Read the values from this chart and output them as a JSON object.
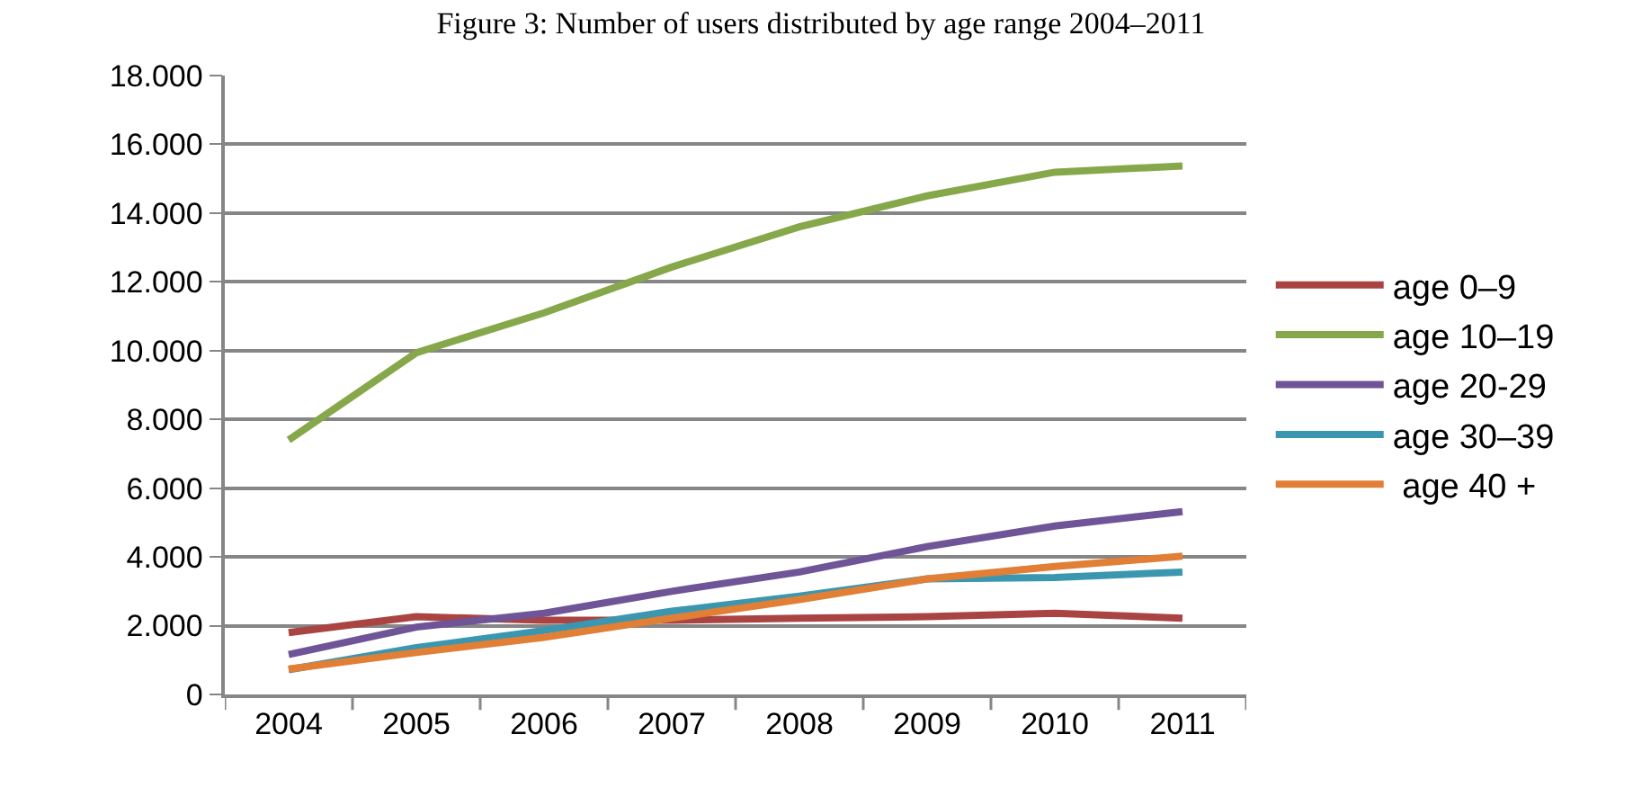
{
  "chart_data": {
    "type": "line",
    "title": "Figure 3: Number of users distributed by age range 2004–2011",
    "categories": [
      "2004",
      "2005",
      "2006",
      "2007",
      "2008",
      "2009",
      "2010",
      "2011"
    ],
    "series": [
      {
        "name": "age 0–9",
        "color": "#a94442",
        "values": [
          1800,
          2260,
          2160,
          2160,
          2220,
          2260,
          2360,
          2220
        ]
      },
      {
        "name": "age 10–19",
        "color": "#86a84a",
        "values": [
          7400,
          9940,
          11100,
          12430,
          13600,
          14500,
          15190,
          15370
        ]
      },
      {
        "name": "age 20-29",
        "color": "#6f5497",
        "values": [
          1160,
          1960,
          2360,
          3000,
          3560,
          4300,
          4900,
          5320
        ]
      },
      {
        "name": "age 30–39",
        "color": "#3b97b0",
        "values": [
          720,
          1360,
          1860,
          2420,
          2860,
          3360,
          3400,
          3560
        ]
      },
      {
        "name": " age 40 +",
        "color": "#e07f35",
        "values": [
          740,
          1220,
          1660,
          2220,
          2760,
          3360,
          3720,
          4020
        ]
      }
    ],
    "ylim": [
      0,
      18000
    ],
    "yticks": [
      0,
      {
        "value": 2000,
        "label": "2.000"
      },
      {
        "value": 4000,
        "label": "4.000"
      },
      {
        "value": 6000,
        "label": "6.000"
      },
      {
        "value": 8000,
        "label": "8.000"
      },
      {
        "value": 10000,
        "label": "10.000"
      },
      {
        "value": 12000,
        "label": "12.000"
      },
      {
        "value": 14000,
        "label": "14.000"
      },
      {
        "value": 16000,
        "label": "16.000"
      },
      {
        "value": 18000,
        "label": "18.000"
      }
    ],
    "grid": "y",
    "legend": "right",
    "marker": "none",
    "line_style": "solid"
  }
}
